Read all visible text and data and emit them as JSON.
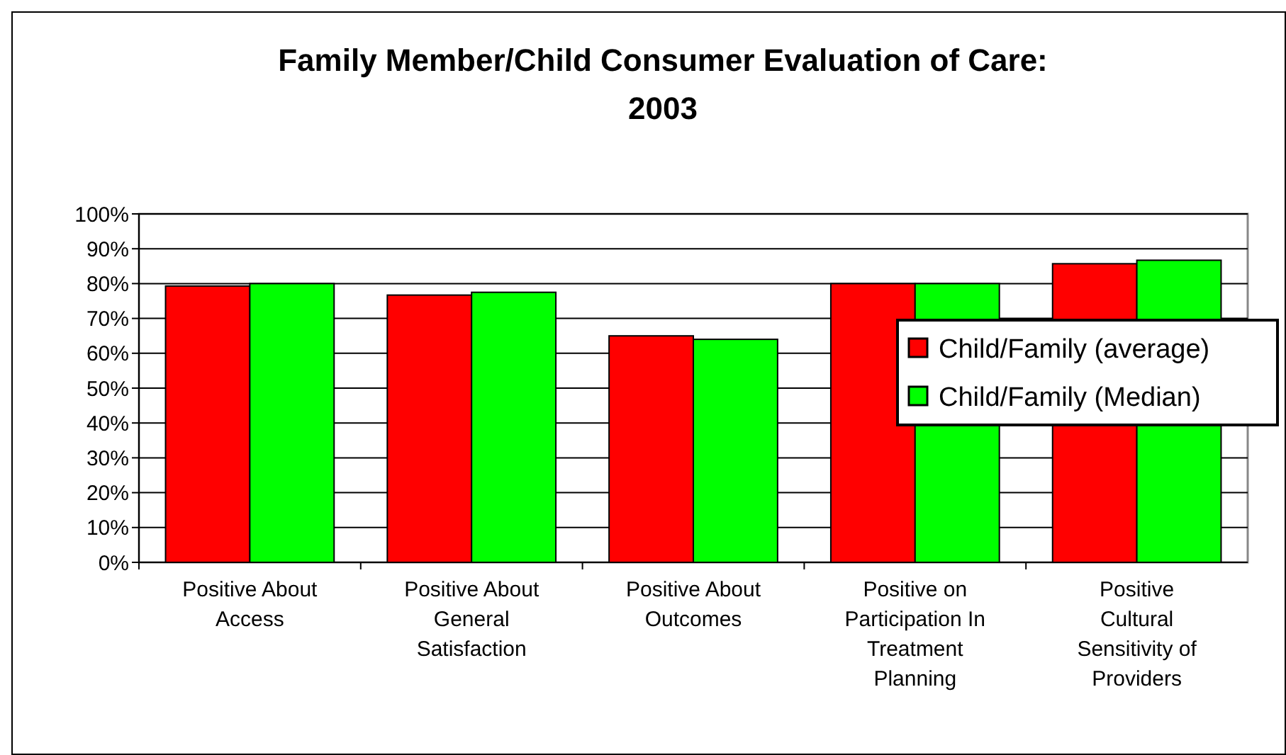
{
  "chart_data": {
    "type": "bar",
    "title": "Family Member/Child Consumer Evaluation of Care: 2003",
    "categories": [
      "Positive About Access",
      "Positive About General Satisfaction",
      "Positive About Outcomes",
      "Positive on Participation In Treatment Planning",
      "Positive Cultural Sensitivity of Providers"
    ],
    "series": [
      {
        "name": "Child/Family (average)",
        "color": "#ff0000",
        "values": [
          79.3,
          76.7,
          65,
          80,
          85.7
        ]
      },
      {
        "name": "Child/Family (Median)",
        "color": "#00ff00",
        "values": [
          80,
          77.5,
          64,
          80,
          86.7
        ]
      }
    ],
    "ylim": [
      0,
      100
    ],
    "yticks": [
      {
        "value": 0,
        "label": "0%"
      },
      {
        "value": 10,
        "label": "10%"
      },
      {
        "value": 20,
        "label": "20%"
      },
      {
        "value": 30,
        "label": "30%"
      },
      {
        "value": 40,
        "label": "40%"
      },
      {
        "value": 50,
        "label": "50%"
      },
      {
        "value": 60,
        "label": "60%"
      },
      {
        "value": 70,
        "label": "70%"
      },
      {
        "value": 80,
        "label": "80%"
      },
      {
        "value": 90,
        "label": "90%"
      },
      {
        "value": 100,
        "label": "100%"
      }
    ],
    "grid": "y",
    "legend": "right"
  }
}
